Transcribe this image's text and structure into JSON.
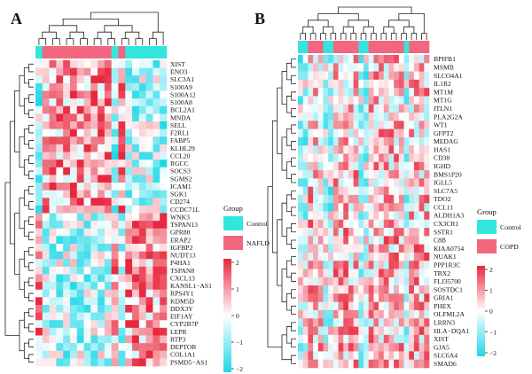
{
  "panels": [
    {
      "letter": "A",
      "group_title": "Group",
      "groups": [
        {
          "label": "Control",
          "color": "#33E6DC"
        },
        {
          "label": "NAFLD",
          "color": "#F2667F"
        }
      ],
      "colorbar_ticks": [
        "2",
        "1",
        "0",
        "−1",
        "−2"
      ],
      "n_cols": 19,
      "col_groups": [
        0,
        1,
        1,
        1,
        1,
        1,
        1,
        1,
        1,
        1,
        1,
        0,
        1,
        0,
        0,
        0,
        0,
        0,
        0
      ],
      "genes": [
        "XIST",
        "ENO3",
        "SLC3A1",
        "S100A9",
        "S100A12",
        "S100A8",
        "BCL2A1",
        "MNDA",
        "SELL",
        "F2RL1",
        "FABP5",
        "KLHL29",
        "CCL20",
        "RGCC",
        "SOCS3",
        "SGMS2",
        "ICAM1",
        "SGK1",
        "CD274",
        "CCDC71L",
        "WNK3",
        "TSPAN13",
        "GPR88",
        "ERAP2",
        "IGFBP2",
        "NUDT13",
        "P4HA1",
        "TSPAN8",
        "CXCL13",
        "KANSL1−AS1",
        "RPS4Y1",
        "KDM5D",
        "DDX3Y",
        "EIF1AY",
        "CYP2B7P",
        "LEPR",
        "RTP3",
        "DEPTOR",
        "COL1A1",
        "PSMD5−AS1"
      ]
    },
    {
      "letter": "B",
      "group_title": "Group",
      "groups": [
        {
          "label": "Control",
          "color": "#33E6DC"
        },
        {
          "label": "COPD",
          "color": "#F2667F"
        }
      ],
      "colorbar_ticks": [
        "2",
        "1",
        "0",
        "−1",
        "−2"
      ],
      "n_cols": 26,
      "col_groups": [
        0,
        0,
        1,
        1,
        1,
        0,
        0,
        1,
        1,
        1,
        1,
        1,
        0,
        0,
        1,
        1,
        1,
        1,
        1,
        1,
        1,
        0,
        1,
        1,
        1,
        1
      ],
      "genes": [
        "BPIFB1",
        "MSMB",
        "SLCO4A1",
        "IL1R2",
        "MT1M",
        "MT1G",
        "ITLN1",
        "PLA2G2A",
        "WT1",
        "GFPT2",
        "MEDAG",
        "HAS1",
        "CD38",
        "IGHD",
        "BMS1P20",
        "IGLL5",
        "SLC7A5",
        "TDO2",
        "CCL11",
        "ALDH1A3",
        "CX3CR1",
        "SSTR1",
        "C8B",
        "KIAA0754",
        "NUAK1",
        "PPP1R3C",
        "TBX2",
        "FLJ35700",
        "SOSTDC1",
        "GRIA1",
        "PHEX",
        "OLFML2A",
        "LRRN3",
        "HLA−DQA1",
        "XIST",
        "GJA5",
        "SLC6A4",
        "SMAD6"
      ]
    }
  ],
  "colors": {
    "high": "#E8283E",
    "mid": "#FFFFFF",
    "low": "#1ED8E8",
    "control": "#33E6DC",
    "case": "#F2667F"
  },
  "chart_data": [
    {
      "type": "heatmap",
      "title": "",
      "rows": [
        "XIST",
        "ENO3",
        "SLC3A1",
        "S100A9",
        "S100A12",
        "S100A8",
        "BCL2A1",
        "MNDA",
        "SELL",
        "F2RL1",
        "FABP5",
        "KLHL29",
        "CCL20",
        "RGCC",
        "SOCS3",
        "SGMS2",
        "ICAM1",
        "SGK1",
        "CD274",
        "CCDC71L",
        "WNK3",
        "TSPAN13",
        "GPR88",
        "ERAP2",
        "IGFBP2",
        "NUDT13",
        "P4HA1",
        "TSPAN8",
        "CXCL13",
        "KANSL1−AS1",
        "RPS4Y1",
        "KDM5D",
        "DDX3Y",
        "EIF1AY",
        "CYP2B7P",
        "LEPR",
        "RTP3",
        "DEPTOR",
        "COL1A1",
        "PSMD5−AS1"
      ],
      "col_groups": [
        "Control",
        "NAFLD",
        "NAFLD",
        "NAFLD",
        "NAFLD",
        "NAFLD",
        "NAFLD",
        "NAFLD",
        "NAFLD",
        "NAFLD",
        "NAFLD",
        "Control",
        "NAFLD",
        "Control",
        "Control",
        "Control",
        "Control",
        "Control",
        "Control"
      ],
      "color_scale": [
        -2,
        2
      ],
      "legend": [
        "Control",
        "NAFLD"
      ]
    },
    {
      "type": "heatmap",
      "title": "",
      "rows": [
        "BPIFB1",
        "MSMB",
        "SLCO4A1",
        "IL1R2",
        "MT1M",
        "MT1G",
        "ITLN1",
        "PLA2G2A",
        "WT1",
        "GFPT2",
        "MEDAG",
        "HAS1",
        "CD38",
        "IGHD",
        "BMS1P20",
        "IGLL5",
        "SLC7A5",
        "TDO2",
        "CCL11",
        "ALDH1A3",
        "CX3CR1",
        "SSTR1",
        "C8B",
        "KIAA0754",
        "NUAK1",
        "PPP1R3C",
        "TBX2",
        "FLJ35700",
        "SOSTDC1",
        "GRIA1",
        "PHEX",
        "OLFML2A",
        "LRRN3",
        "HLA−DQA1",
        "XIST",
        "GJA5",
        "SLC6A4",
        "SMAD6"
      ],
      "col_groups": [
        "Control",
        "Control",
        "COPD",
        "COPD",
        "COPD",
        "Control",
        "Control",
        "COPD",
        "COPD",
        "COPD",
        "COPD",
        "COPD",
        "Control",
        "Control",
        "COPD",
        "COPD",
        "COPD",
        "COPD",
        "COPD",
        "COPD",
        "COPD",
        "Control",
        "COPD",
        "COPD",
        "COPD",
        "COPD"
      ],
      "color_scale": [
        -2,
        2
      ],
      "legend": [
        "Control",
        "COPD"
      ]
    }
  ]
}
